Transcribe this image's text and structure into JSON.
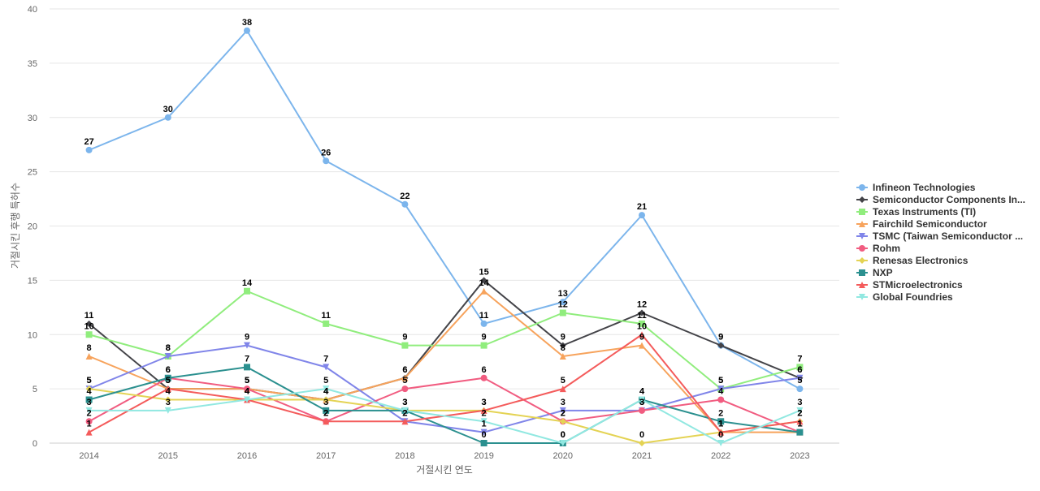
{
  "chart_data": {
    "type": "line",
    "title": "",
    "xlabel": "거절시킨 연도",
    "ylabel": "거절시킨 후행 특허수",
    "categories": [
      "2014",
      "2015",
      "2016",
      "2017",
      "2018",
      "2019",
      "2020",
      "2021",
      "2022",
      "2023"
    ],
    "ylim": [
      0,
      40
    ],
    "yticks": [
      0,
      5,
      10,
      15,
      20,
      25,
      30,
      35,
      40
    ],
    "grid": true,
    "legend_position": "right",
    "series": [
      {
        "name": "Infineon Technologies",
        "color": "#7cb5ec",
        "marker": "circle",
        "values": [
          27,
          30,
          38,
          26,
          22,
          11,
          13,
          21,
          9,
          5
        ]
      },
      {
        "name": "Semiconductor Components In...",
        "color": "#434348",
        "marker": "diamond",
        "values": [
          11,
          5,
          5,
          4,
          6,
          15,
          9,
          12,
          9,
          6
        ]
      },
      {
        "name": "Texas Instruments (TI)",
        "color": "#90ed7d",
        "marker": "square",
        "values": [
          10,
          8,
          14,
          11,
          9,
          9,
          12,
          11,
          5,
          7
        ]
      },
      {
        "name": "Fairchild Semiconductor",
        "color": "#f7a35c",
        "marker": "triangle",
        "values": [
          8,
          5,
          5,
          4,
          6,
          14,
          8,
          9,
          1,
          1
        ]
      },
      {
        "name": "TSMC (Taiwan Semiconductor ...",
        "color": "#8085e9",
        "marker": "triangle-down",
        "values": [
          5,
          8,
          9,
          7,
          2,
          1,
          3,
          3,
          5,
          6
        ]
      },
      {
        "name": "Rohm",
        "color": "#f15c80",
        "marker": "circle",
        "values": [
          2,
          6,
          5,
          2,
          5,
          6,
          2,
          3,
          4,
          1
        ]
      },
      {
        "name": "Renesas Electronics",
        "color": "#e4d354",
        "marker": "diamond",
        "values": [
          5,
          4,
          4,
          4,
          3,
          3,
          2,
          0,
          1,
          2
        ]
      },
      {
        "name": "NXP",
        "color": "#2b908f",
        "marker": "square",
        "values": [
          4,
          6,
          7,
          3,
          3,
          0,
          0,
          4,
          2,
          1
        ]
      },
      {
        "name": "STMicroelectronics",
        "color": "#f45b5b",
        "marker": "triangle",
        "values": [
          1,
          5,
          4,
          2,
          2,
          3,
          5,
          10,
          1,
          2
        ]
      },
      {
        "name": "Global Foundries",
        "color": "#91e8e1",
        "marker": "triangle-down",
        "values": [
          3,
          3,
          4,
          5,
          3,
          2,
          0,
          4,
          0,
          3
        ]
      }
    ]
  }
}
